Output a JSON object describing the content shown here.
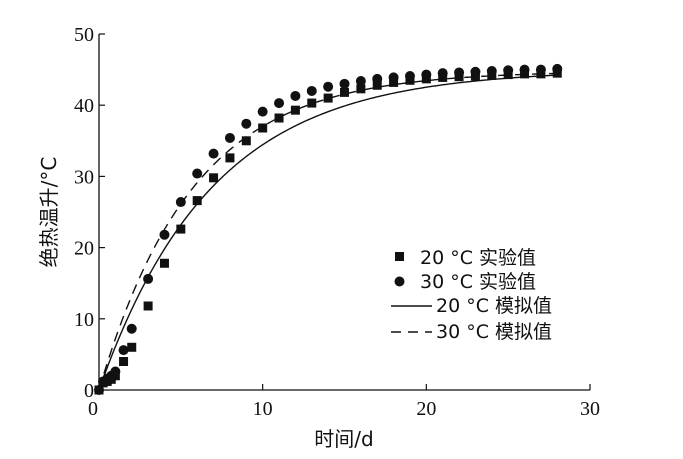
{
  "chart_data": {
    "type": "scatter",
    "xlabel": "时间/d",
    "ylabel": "绝热温升/°C",
    "xlim": [
      0,
      30
    ],
    "ylim": [
      0,
      50
    ],
    "xticks": [
      "0",
      "10",
      "20",
      "30"
    ],
    "yticks": [
      "0",
      "10",
      "20",
      "30",
      "40",
      "50"
    ],
    "grid": false,
    "legend_position": "center-right",
    "series": [
      {
        "name": "20 °C 实验值",
        "kind": "points",
        "marker": "square",
        "x": [
          0.0,
          0.25,
          0.5,
          0.75,
          1.0,
          1.5,
          2.0,
          3.0,
          4.0,
          5.0,
          6.0,
          7.0,
          8.0,
          9.0,
          10.0,
          11.0,
          12.0,
          13.0,
          14.0,
          15.0,
          16.0,
          17.0,
          18.0,
          19.0,
          20.0,
          21.0,
          22.0,
          23.0,
          24.0,
          25.0,
          26.0,
          27.0,
          28.0
        ],
        "y": [
          0.0,
          1.0,
          1.2,
          1.5,
          2.0,
          4.0,
          6.0,
          11.8,
          17.8,
          22.6,
          26.6,
          29.8,
          32.6,
          35.0,
          36.8,
          38.2,
          39.3,
          40.3,
          41.0,
          41.8,
          42.3,
          42.8,
          43.2,
          43.5,
          43.7,
          43.9,
          44.0,
          44.1,
          44.2,
          44.3,
          44.4,
          44.4,
          44.5
        ]
      },
      {
        "name": "30 °C 实验值",
        "kind": "points",
        "marker": "circle",
        "x": [
          0.0,
          0.25,
          0.5,
          0.75,
          1.0,
          1.5,
          2.0,
          3.0,
          4.0,
          5.0,
          6.0,
          7.0,
          8.0,
          9.0,
          10.0,
          11.0,
          12.0,
          13.0,
          14.0,
          15.0,
          16.0,
          17.0,
          18.0,
          19.0,
          20.0,
          21.0,
          22.0,
          23.0,
          24.0,
          25.0,
          26.0,
          27.0,
          28.0
        ],
        "y": [
          0.0,
          1.2,
          1.6,
          2.0,
          2.6,
          5.6,
          8.6,
          15.6,
          21.8,
          26.4,
          30.4,
          33.2,
          35.4,
          37.4,
          39.1,
          40.3,
          41.3,
          42.0,
          42.6,
          43.0,
          43.4,
          43.7,
          43.9,
          44.1,
          44.3,
          44.5,
          44.6,
          44.7,
          44.8,
          44.9,
          45.0,
          45.0,
          45.1
        ]
      },
      {
        "name": "20 °C 模拟值",
        "kind": "line",
        "dash": "solid",
        "model": {
          "Tmax": 45.0,
          "k": 0.145
        }
      },
      {
        "name": "30 °C 模拟值",
        "kind": "line",
        "dash": "dashed",
        "model": {
          "Tmax": 44.8,
          "k": 0.175
        }
      }
    ]
  }
}
